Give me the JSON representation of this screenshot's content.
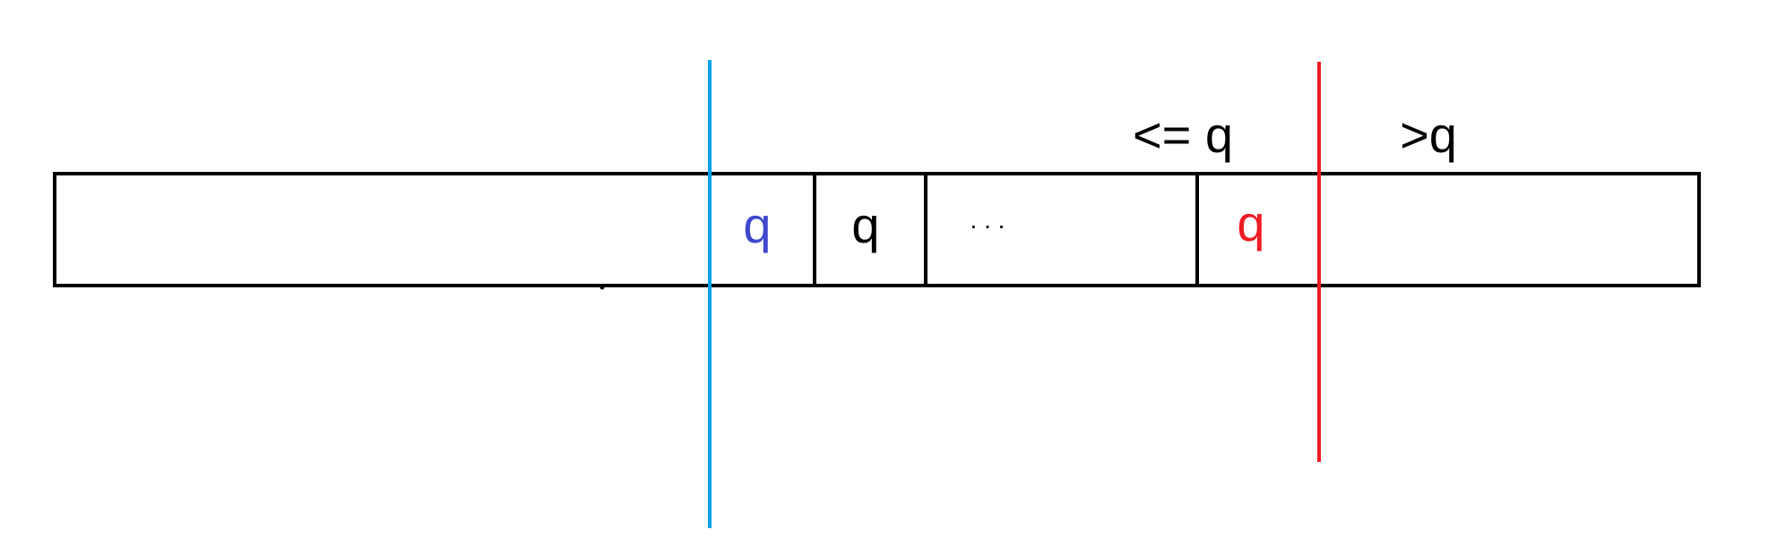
{
  "labels": {
    "le_q": "<= q",
    "gt_q": ">q",
    "cell_q_left": "q",
    "cell_q_mid": "q",
    "cell_dots": ". . .",
    "cell_q_right": "q"
  },
  "colors": {
    "outline": "#000000",
    "blue_line": "#00a2e8",
    "blue_q": "#3f48cc",
    "red": "#ed1c24"
  }
}
